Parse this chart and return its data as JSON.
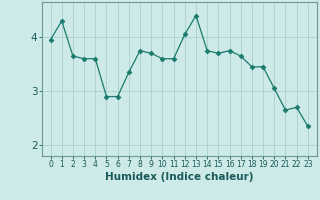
{
  "xlabel": "Humidex (Indice chaleur)",
  "x": [
    0,
    1,
    2,
    3,
    4,
    5,
    6,
    7,
    8,
    9,
    10,
    11,
    12,
    13,
    14,
    15,
    16,
    17,
    18,
    19,
    20,
    21,
    22,
    23
  ],
  "y": [
    3.95,
    4.3,
    3.65,
    3.6,
    3.6,
    2.9,
    2.9,
    3.35,
    3.75,
    3.7,
    3.6,
    3.6,
    4.05,
    4.4,
    3.75,
    3.7,
    3.75,
    3.65,
    3.45,
    3.45,
    3.05,
    2.65,
    2.7,
    2.35
  ],
  "ylim": [
    1.8,
    4.65
  ],
  "yticks": [
    2,
    3,
    4
  ],
  "line_color": "#1a7a6e",
  "marker": "D",
  "marker_size": 2.5,
  "bg_color": "#ceeae8",
  "grid_color": "#aacfcc",
  "axis_color": "#6a9a98",
  "fig_bg": "#ceeae8",
  "xlabel_color": "#1a5a58",
  "tick_color": "#1a5a58",
  "xlabel_fontsize": 7.5,
  "xtick_fontsize": 5.5,
  "ytick_fontsize": 7.5
}
